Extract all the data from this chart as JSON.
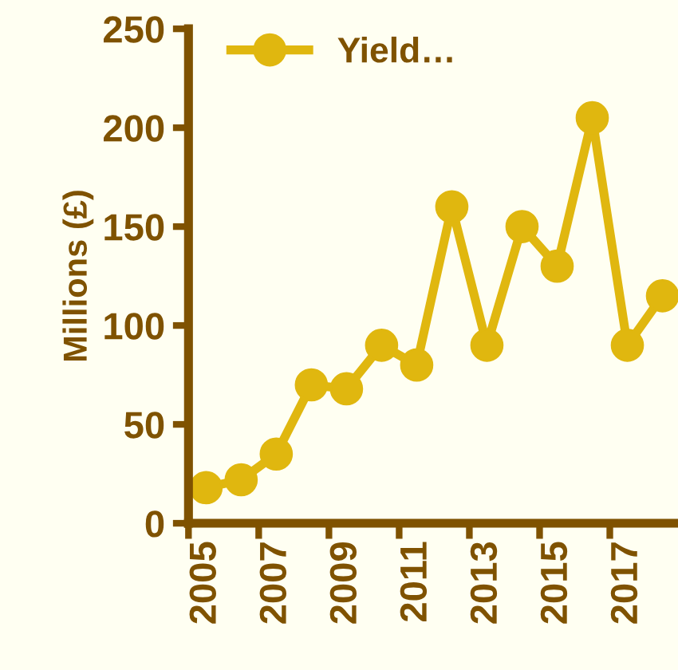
{
  "chart_data": {
    "type": "line",
    "ylabel": "Millions (£)",
    "categories": [
      "2005",
      null,
      "2007",
      null,
      "2009",
      null,
      "2011",
      null,
      "2013",
      null,
      "2015",
      null,
      "2017",
      null
    ],
    "series": [
      {
        "name": "Yield…",
        "color": "#e0b70f",
        "values": [
          18,
          22,
          35,
          70,
          68,
          90,
          80,
          160,
          90,
          150,
          130,
          205,
          90,
          115
        ]
      }
    ],
    "ylim": [
      0,
      250
    ],
    "yticks": [
      0,
      50,
      100,
      150,
      200,
      250
    ],
    "marker": "circle",
    "line_style": "solid",
    "legend": "top left",
    "grid": false
  }
}
